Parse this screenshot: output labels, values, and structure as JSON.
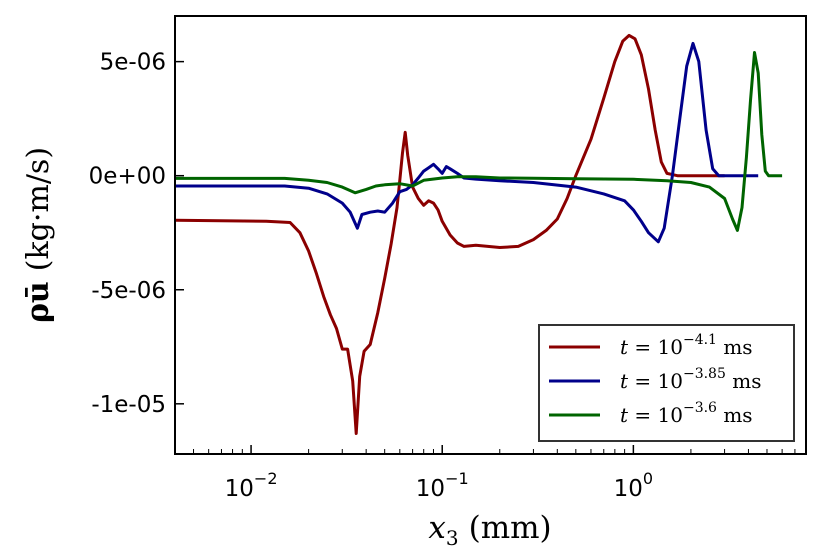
{
  "chart_data": {
    "type": "line",
    "xscale": "log",
    "xlabel": "x3 (mm)",
    "xlabel_var": "x",
    "xlabel_sub": "3",
    "xlabel_unit": "(mm)",
    "ylabel": "ρū (kg·m/s)",
    "ylabel_sym": "ρū",
    "ylabel_unit": "(kg·m/s)",
    "xlim": [
      0.004,
      8.0
    ],
    "ylim": [
      -1.22e-05,
      7e-06
    ],
    "x_ticks": [
      {
        "value": 0.01,
        "base": "10",
        "exp": "−2"
      },
      {
        "value": 0.1,
        "base": "10",
        "exp": "−1"
      },
      {
        "value": 1.0,
        "base": "10",
        "exp": "0"
      }
    ],
    "y_ticks": [
      {
        "value": 5e-06,
        "label": "5e-06"
      },
      {
        "value": 0,
        "label": "0e+00"
      },
      {
        "value": -5e-06,
        "label": "-5e-06"
      },
      {
        "value": -1e-05,
        "label": "-1e-05"
      }
    ],
    "legend_position": "lower-right",
    "series": [
      {
        "name": "t = 10^-4.1 ms",
        "legend_prefix": "t = 10",
        "legend_exp": "−4.1",
        "legend_suffix": " ms",
        "color": "#8b0000",
        "points": [
          [
            0.004,
            -1.95e-06
          ],
          [
            0.008,
            -1.98e-06
          ],
          [
            0.012,
            -2e-06
          ],
          [
            0.016,
            -2.05e-06
          ],
          [
            0.018,
            -2.5e-06
          ],
          [
            0.02,
            -3.3e-06
          ],
          [
            0.022,
            -4.3e-06
          ],
          [
            0.024,
            -5.3e-06
          ],
          [
            0.026,
            -6.1e-06
          ],
          [
            0.028,
            -6.7e-06
          ],
          [
            0.03,
            -7.6e-06
          ],
          [
            0.032,
            -7.6e-06
          ],
          [
            0.034,
            -9e-06
          ],
          [
            0.0355,
            -1.13e-05
          ],
          [
            0.037,
            -8.8e-06
          ],
          [
            0.039,
            -7.7e-06
          ],
          [
            0.042,
            -7.4e-06
          ],
          [
            0.046,
            -6e-06
          ],
          [
            0.05,
            -4.5e-06
          ],
          [
            0.054,
            -3e-06
          ],
          [
            0.058,
            -1.4e-06
          ],
          [
            0.06,
            -2e-07
          ],
          [
            0.062,
            1e-06
          ],
          [
            0.064,
            1.9e-06
          ],
          [
            0.066,
            9e-07
          ],
          [
            0.07,
            -5e-07
          ],
          [
            0.075,
            -1e-06
          ],
          [
            0.08,
            -1.3e-06
          ],
          [
            0.085,
            -1.1e-06
          ],
          [
            0.09,
            -1.2e-06
          ],
          [
            0.095,
            -1.5e-06
          ],
          [
            0.1,
            -2e-06
          ],
          [
            0.11,
            -2.6e-06
          ],
          [
            0.12,
            -2.95e-06
          ],
          [
            0.13,
            -3.1e-06
          ],
          [
            0.15,
            -3.05e-06
          ],
          [
            0.2,
            -3.15e-06
          ],
          [
            0.25,
            -3.1e-06
          ],
          [
            0.3,
            -2.8e-06
          ],
          [
            0.35,
            -2.4e-06
          ],
          [
            0.4,
            -1.9e-06
          ],
          [
            0.45,
            -1e-06
          ],
          [
            0.5,
            0.0
          ],
          [
            0.6,
            1.6e-06
          ],
          [
            0.7,
            3.4e-06
          ],
          [
            0.8,
            5e-06
          ],
          [
            0.88,
            5.9e-06
          ],
          [
            0.95,
            6.15e-06
          ],
          [
            1.02,
            6e-06
          ],
          [
            1.1,
            5.3e-06
          ],
          [
            1.2,
            3.8e-06
          ],
          [
            1.3,
            2e-06
          ],
          [
            1.4,
            6e-07
          ],
          [
            1.5,
            1e-07
          ],
          [
            1.7,
            0.0
          ],
          [
            3.0,
            0.0
          ]
        ]
      },
      {
        "name": "t = 10^-3.85 ms",
        "legend_prefix": "t = 10",
        "legend_exp": "−3.85",
        "legend_suffix": " ms",
        "color": "#00008b",
        "points": [
          [
            0.004,
            -4.5e-07
          ],
          [
            0.015,
            -4.5e-07
          ],
          [
            0.02,
            -5.5e-07
          ],
          [
            0.025,
            -8e-07
          ],
          [
            0.03,
            -1.2e-06
          ],
          [
            0.033,
            -1.6e-06
          ],
          [
            0.036,
            -2.3e-06
          ],
          [
            0.038,
            -1.7e-06
          ],
          [
            0.042,
            -1.6e-06
          ],
          [
            0.046,
            -1.55e-06
          ],
          [
            0.05,
            -1.6e-06
          ],
          [
            0.055,
            -1.2e-06
          ],
          [
            0.06,
            -7e-07
          ],
          [
            0.065,
            -6e-07
          ],
          [
            0.07,
            -4e-07
          ],
          [
            0.075,
            -1e-07
          ],
          [
            0.08,
            2e-07
          ],
          [
            0.085,
            3.5e-07
          ],
          [
            0.09,
            5e-07
          ],
          [
            0.095,
            3e-07
          ],
          [
            0.1,
            1e-07
          ],
          [
            0.105,
            4e-07
          ],
          [
            0.11,
            3e-07
          ],
          [
            0.12,
            1e-07
          ],
          [
            0.13,
            -1e-07
          ],
          [
            0.15,
            -1.5e-07
          ],
          [
            0.2,
            -2.2e-07
          ],
          [
            0.3,
            -3e-07
          ],
          [
            0.5,
            -5e-07
          ],
          [
            0.7,
            -8e-07
          ],
          [
            0.9,
            -1.1e-06
          ],
          [
            1.0,
            -1.5e-06
          ],
          [
            1.1,
            -2e-06
          ],
          [
            1.2,
            -2.5e-06
          ],
          [
            1.35,
            -2.9e-06
          ],
          [
            1.45,
            -2.3e-06
          ],
          [
            1.6,
            0.0
          ],
          [
            1.75,
            2.5e-06
          ],
          [
            1.9,
            4.8e-06
          ],
          [
            2.05,
            5.8e-06
          ],
          [
            2.2,
            5e-06
          ],
          [
            2.4,
            2e-06
          ],
          [
            2.6,
            3e-07
          ],
          [
            2.8,
            0.0
          ],
          [
            4.5,
            0.0
          ]
        ]
      },
      {
        "name": "t = 10^-3.6 ms",
        "legend_prefix": "t = 10",
        "legend_exp": "−3.6",
        "legend_suffix": " ms",
        "color": "#006400",
        "points": [
          [
            0.004,
            -1.2e-07
          ],
          [
            0.015,
            -1.2e-07
          ],
          [
            0.02,
            -2e-07
          ],
          [
            0.025,
            -3e-07
          ],
          [
            0.03,
            -5e-07
          ],
          [
            0.035,
            -7.5e-07
          ],
          [
            0.04,
            -6e-07
          ],
          [
            0.045,
            -4.5e-07
          ],
          [
            0.05,
            -4e-07
          ],
          [
            0.06,
            -3.5e-07
          ],
          [
            0.07,
            -4.5e-07
          ],
          [
            0.08,
            -2e-07
          ],
          [
            0.1,
            -1e-07
          ],
          [
            0.12,
            -5e-08
          ],
          [
            0.15,
            -5e-08
          ],
          [
            0.2,
            -1e-07
          ],
          [
            0.3,
            -1.1e-07
          ],
          [
            0.5,
            -1.3e-07
          ],
          [
            1.0,
            -1.6e-07
          ],
          [
            1.5,
            -2.2e-07
          ],
          [
            2.0,
            -3e-07
          ],
          [
            2.5,
            -5e-07
          ],
          [
            3.0,
            -1e-06
          ],
          [
            3.3,
            -1.9e-06
          ],
          [
            3.5,
            -2.4e-06
          ],
          [
            3.7,
            -1.4e-06
          ],
          [
            3.9,
            8e-07
          ],
          [
            4.1,
            3.3e-06
          ],
          [
            4.3,
            5.4e-06
          ],
          [
            4.5,
            4.5e-06
          ],
          [
            4.7,
            1.8e-06
          ],
          [
            4.9,
            2e-07
          ],
          [
            5.1,
            0.0
          ],
          [
            6.0,
            0.0
          ]
        ]
      }
    ]
  }
}
